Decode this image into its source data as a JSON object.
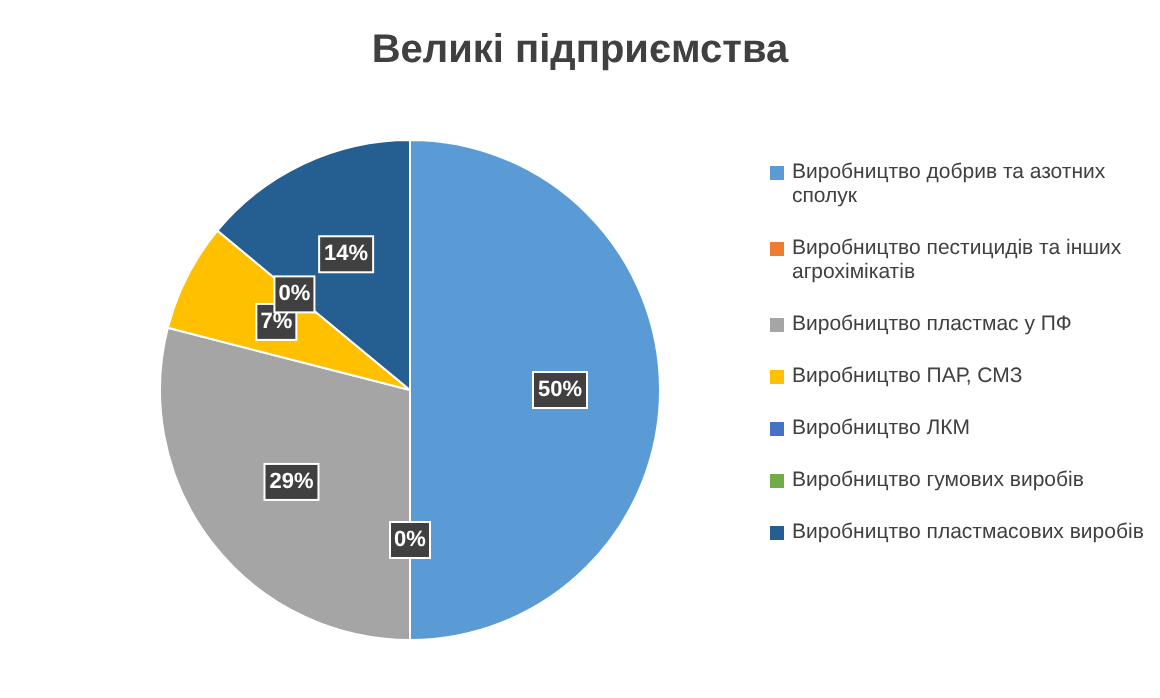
{
  "chart_data": {
    "type": "pie",
    "title": "Великі підприємства",
    "categories": [
      "Виробництво добрив та азотних сполук",
      "Виробництво пестицидів та інших агрохімікатів",
      "Виробництво пластмас у ПФ",
      "Виробництво ПАР, СМЗ",
      "Виробництво ЛКМ",
      "Виробництво гумових виробів",
      "Виробництво пластмасових виробів"
    ],
    "values": [
      50,
      0,
      29,
      7,
      0,
      0,
      14
    ],
    "colors": [
      "#5b9bd5",
      "#ed7d31",
      "#a5a5a5",
      "#ffc000",
      "#4472c4",
      "#70ad47",
      "#255e91"
    ],
    "value_labels": [
      "50%",
      "0%",
      "29%",
      "7%",
      "0%",
      null,
      "14%"
    ],
    "legend": "right"
  }
}
